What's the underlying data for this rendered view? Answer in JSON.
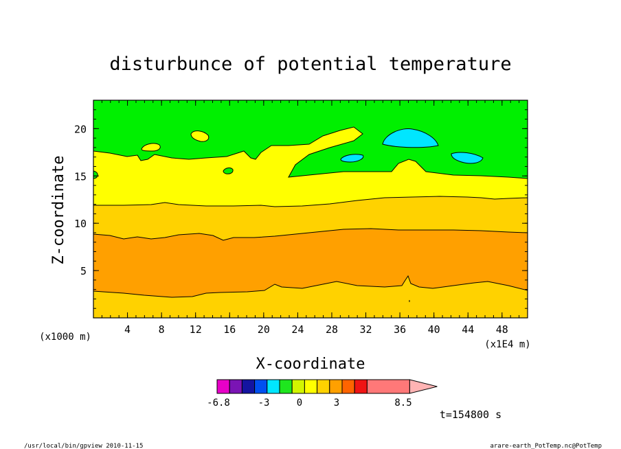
{
  "chart_data": {
    "type": "heatmap",
    "title": "disturbunce of potential temperature",
    "xlabel": "X-coordinate",
    "ylabel": "Z-coordinate",
    "x_unit_label": "(x1E4 m)",
    "y_unit_label": "(x1000 m)",
    "xlim": [
      0,
      51
    ],
    "ylim": [
      0,
      23
    ],
    "x_ticks": [
      4,
      8,
      12,
      16,
      20,
      24,
      28,
      32,
      36,
      40,
      44,
      48
    ],
    "y_ticks": [
      5,
      10,
      15,
      20
    ],
    "colorbar": {
      "tick_labels": [
        "-6.8",
        "-3",
        "0",
        "3",
        "8.5"
      ],
      "colors": [
        "#e800c8",
        "#7a14b4",
        "#1414a0",
        "#0050f0",
        "#00e6ff",
        "#1ee61e",
        "#d2f500",
        "#ffff00",
        "#ffd200",
        "#ffa000",
        "#ff6400",
        "#f01414",
        "#ff7878",
        "#ffb4b4"
      ]
    },
    "bands": [
      {
        "level": "orange",
        "color": "#ffa000",
        "z_range_approx": [
          3,
          9
        ]
      },
      {
        "level": "gold",
        "color": "#ffd200",
        "z_range_approx": [
          0,
          3
        ]
      },
      {
        "level": "gold",
        "color": "#ffd200",
        "z_range_approx": [
          9,
          12
        ]
      },
      {
        "level": "yellow",
        "color": "#ffff00",
        "z_range_approx": [
          12,
          17
        ]
      },
      {
        "level": "green",
        "color": "#00f000",
        "z_range_approx": [
          17,
          23
        ]
      },
      {
        "level": "cyan",
        "color": "#00e6ff",
        "centers": [
          [
            37.5,
            18.8
          ],
          [
            30,
            16.8
          ],
          [
            44.5,
            16.8
          ]
        ]
      }
    ]
  },
  "time_label": "t=154800 s",
  "footer": {
    "left": "/usr/local/bin/gpview  2010-11-15",
    "right": "arare-earth_PotTemp.nc@PotTemp"
  }
}
